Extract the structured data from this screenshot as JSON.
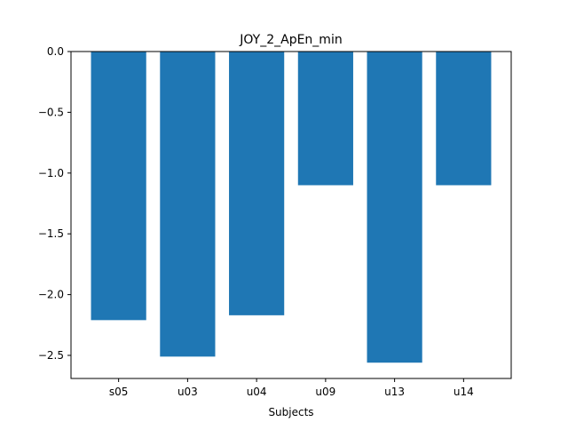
{
  "chart_data": {
    "type": "bar",
    "title": "JOY_2_ApEn_min",
    "xlabel": "Subjects",
    "ylabel": "",
    "categories": [
      "s05",
      "u03",
      "u04",
      "u09",
      "u13",
      "u14"
    ],
    "values": [
      -2.21,
      -2.51,
      -2.17,
      -1.1,
      -2.56,
      -1.1
    ],
    "ylim": [
      -2.69,
      0.0
    ],
    "yticks": [
      0.0,
      -0.5,
      -1.0,
      -1.5,
      -2.0,
      -2.5
    ],
    "ytick_labels": [
      "0.0",
      "−0.5",
      "−1.0",
      "−1.5",
      "−2.0",
      "−2.5"
    ],
    "bar_color": "#1f77b4",
    "grid": false,
    "legend": "none"
  }
}
